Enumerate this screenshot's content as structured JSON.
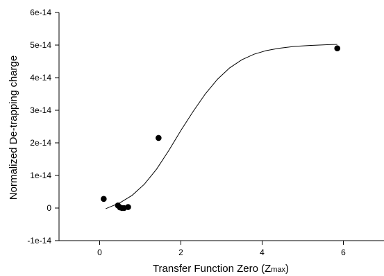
{
  "chart_data": {
    "type": "scatter",
    "xlabel_main": "Transfer Function Zero (Z",
    "xlabel_sub": "max",
    "xlabel_end": ")",
    "ylabel": "Normalized De-trapping charge",
    "xlim": [
      -1,
      7
    ],
    "ylim": [
      -1e-14,
      6e-14
    ],
    "x_ticks": [
      0,
      2,
      4,
      6
    ],
    "x_tick_labels": [
      "0",
      "2",
      "4",
      "6"
    ],
    "y_ticks": [
      -1e-14,
      0,
      1e-14,
      2e-14,
      3e-14,
      4e-14,
      5e-14,
      6e-14
    ],
    "y_tick_labels": [
      "-1e-14",
      "0",
      "1e-14",
      "2e-14",
      "3e-14",
      "4e-14",
      "5e-14",
      "6e-14"
    ],
    "grid": false,
    "legend": "none",
    "series": [
      {
        "kind": "points",
        "x": [
          0.1,
          0.45,
          0.5,
          0.55,
          0.6,
          0.7,
          1.45,
          5.85
        ],
        "y": [
          2.8e-15,
          8e-16,
          2e-16,
          0,
          0,
          3e-16,
          2.15e-14,
          4.9e-14
        ]
      },
      {
        "kind": "fit-line",
        "x": [
          0.15,
          0.5,
          0.8,
          1.1,
          1.4,
          1.7,
          2.0,
          2.3,
          2.6,
          2.9,
          3.2,
          3.5,
          3.8,
          4.1,
          4.4,
          4.8,
          5.2,
          5.6,
          5.85
        ],
        "y": [
          -2e-16,
          1.6e-15,
          3.9e-15,
          7.3e-15,
          1.19e-14,
          1.76e-14,
          2.38e-14,
          2.96e-14,
          3.5e-14,
          3.95e-14,
          4.3e-14,
          4.55e-14,
          4.72e-14,
          4.83e-14,
          4.9e-14,
          4.96e-14,
          4.99e-14,
          5.01e-14,
          5.02e-14
        ]
      }
    ]
  }
}
